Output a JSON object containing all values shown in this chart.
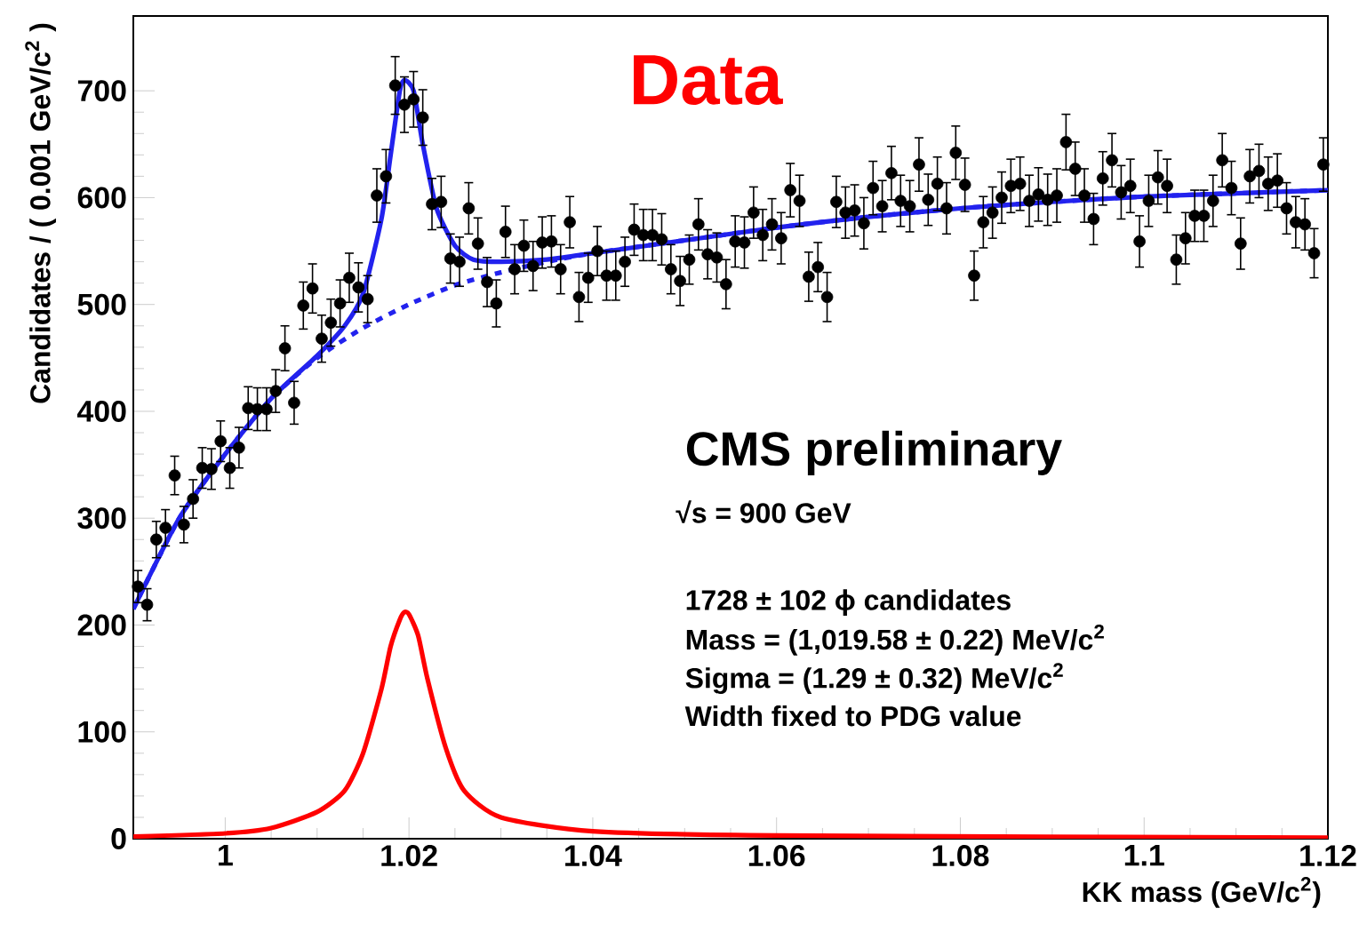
{
  "chart_data": {
    "type": "scatter",
    "xlabel": "KK mass (GeV/c$^{2}$)",
    "ylabel": "Candidates / ( 0.001 GeV/c$^{2}$ )",
    "annotations": [
      "Data",
      "CMS preliminary",
      "√s = 900 GeV",
      "1728 ± 102  ϕ candidates",
      "Mass = (1,019.58 ± 0.22) MeV/c$^{2}$",
      "Sigma = (1.29 ± 0.32) MeV/c$^{2}$",
      "Width fixed to PDG value"
    ],
    "xlim": [
      0.99,
      1.12
    ],
    "ylim": [
      0,
      770
    ],
    "xticks": [
      1,
      1.02,
      1.04,
      1.06,
      1.08,
      1.1,
      1.12
    ],
    "yticks": [
      0,
      100,
      200,
      300,
      400,
      500,
      600,
      700
    ],
    "series": [
      {
        "type": "line",
        "color": "#2222ee",
        "line_style": "dotted",
        "marker": "none",
        "x": [
          0.99,
          0.995,
          1.0,
          1.005,
          1.01,
          1.015,
          1.02,
          1.025,
          1.03,
          1.035,
          1.04,
          1.05,
          1.06,
          1.07,
          1.08,
          1.09,
          1.1,
          1.11,
          1.12
        ],
        "values": [
          215,
          300,
          360,
          412,
          450,
          478,
          500,
          518,
          530,
          540,
          548,
          560,
          572,
          582,
          590,
          596,
          601,
          604,
          607
        ]
      },
      {
        "type": "line",
        "color": "#2222ee",
        "line_style": "solid",
        "marker": "none",
        "x": [
          0.99,
          0.995,
          1.0,
          1.005,
          1.01,
          1.013,
          1.015,
          1.017,
          1.018,
          1.019,
          1.0195,
          1.0205,
          1.0215,
          1.023,
          1.025,
          1.027,
          1.03,
          1.035,
          1.04,
          1.05,
          1.06,
          1.07,
          1.08,
          1.09,
          1.1,
          1.11,
          1.12
        ],
        "values": [
          215,
          300,
          360,
          412,
          452,
          480,
          510,
          580,
          640,
          700,
          710,
          700,
          650,
          590,
          555,
          542,
          540,
          542,
          548,
          560,
          572,
          582,
          590,
          596,
          601,
          604,
          607
        ]
      },
      {
        "type": "line",
        "color": "#ff0000",
        "line_style": "solid",
        "marker": "none",
        "x": [
          0.99,
          1.0,
          1.005,
          1.01,
          1.013,
          1.015,
          1.017,
          1.018,
          1.019,
          1.0195,
          1.02,
          1.021,
          1.022,
          1.024,
          1.026,
          1.03,
          1.04,
          1.06,
          1.12
        ],
        "values": [
          2,
          5,
          10,
          25,
          45,
          80,
          140,
          180,
          205,
          212,
          210,
          190,
          150,
          85,
          45,
          20,
          7,
          3,
          1
        ]
      },
      {
        "color": "#000000",
        "marker": "circle",
        "x": [
          0.9905,
          0.9915,
          0.9925,
          0.9935,
          0.9945,
          0.9955,
          0.9965,
          0.9975,
          0.9985,
          0.9995,
          1.0005,
          1.0015,
          1.0025,
          1.0035,
          1.0045,
          1.0055,
          1.0065,
          1.0075,
          1.0085,
          1.0095,
          1.0105,
          1.0115,
          1.0125,
          1.0135,
          1.0145,
          1.0155,
          1.0165,
          1.0175,
          1.0185,
          1.0195,
          1.0205,
          1.0215,
          1.0225,
          1.0235,
          1.0245,
          1.0255,
          1.0265,
          1.0275,
          1.0285,
          1.0295,
          1.0305,
          1.0315,
          1.0325,
          1.0335,
          1.0345,
          1.0355,
          1.0365,
          1.0375,
          1.0385,
          1.0395,
          1.0405,
          1.0415,
          1.0425,
          1.0435,
          1.0445,
          1.0455,
          1.0465,
          1.0475,
          1.0485,
          1.0495,
          1.0505,
          1.0515,
          1.0525,
          1.0535,
          1.0545,
          1.0555,
          1.0565,
          1.0575,
          1.0585,
          1.0595,
          1.0605,
          1.0615,
          1.0625,
          1.0635,
          1.0645,
          1.0655,
          1.0665,
          1.0675,
          1.0685,
          1.0695,
          1.0705,
          1.0715,
          1.0725,
          1.0735,
          1.0745,
          1.0755,
          1.0765,
          1.0775,
          1.0785,
          1.0795,
          1.0805,
          1.0815,
          1.0825,
          1.0835,
          1.0845,
          1.0855,
          1.0865,
          1.0875,
          1.0885,
          1.0895,
          1.0905,
          1.0915,
          1.0925,
          1.0935,
          1.0945,
          1.0955,
          1.0965,
          1.0975,
          1.0985,
          1.0995,
          1.1005,
          1.1015,
          1.1025,
          1.1035,
          1.1045,
          1.1055,
          1.1065,
          1.1075,
          1.1085,
          1.1095,
          1.1105,
          1.1115,
          1.1125,
          1.1135,
          1.1145,
          1.1155,
          1.1165,
          1.1175,
          1.1185,
          1.1195
        ],
        "values": [
          236,
          219,
          280,
          291,
          340,
          294,
          318,
          347,
          346,
          372,
          347,
          366,
          403,
          402,
          402,
          419,
          459,
          408,
          499,
          515,
          468,
          483,
          501,
          525,
          516,
          505,
          602,
          620,
          705,
          687,
          692,
          675,
          594,
          596,
          543,
          540,
          590,
          557,
          521,
          501,
          568,
          533,
          555,
          536,
          558,
          559,
          533,
          577,
          507,
          525,
          550,
          527,
          527,
          540,
          570,
          565,
          565,
          561,
          533,
          522,
          542,
          575,
          547,
          544,
          519,
          559,
          558,
          586,
          565,
          575,
          562,
          607,
          597,
          526,
          535,
          507,
          596,
          586,
          588,
          576,
          609,
          592,
          623,
          597,
          592,
          631,
          598,
          613,
          590,
          642,
          612,
          527,
          577,
          586,
          600,
          611,
          613,
          597,
          603,
          598,
          602,
          652,
          627,
          602,
          580,
          618,
          635,
          605,
          611,
          559,
          597,
          619,
          611,
          542,
          562,
          583,
          583,
          597,
          635,
          609,
          557,
          620,
          625,
          613,
          616,
          590,
          577,
          575,
          548,
          631
        ],
        "errors": [
          15,
          15,
          17,
          17,
          18,
          17,
          18,
          19,
          19,
          19,
          19,
          19,
          20,
          20,
          20,
          20,
          21,
          20,
          22,
          23,
          22,
          22,
          22,
          23,
          23,
          22,
          25,
          25,
          27,
          26,
          26,
          26,
          24,
          24,
          23,
          23,
          24,
          24,
          23,
          22,
          24,
          23,
          24,
          23,
          24,
          24,
          23,
          24,
          23,
          23,
          23,
          23,
          23,
          23,
          24,
          24,
          24,
          24,
          23,
          23,
          23,
          24,
          23,
          23,
          23,
          24,
          24,
          24,
          24,
          24,
          24,
          25,
          24,
          23,
          23,
          23,
          24,
          24,
          24,
          24,
          25,
          24,
          25,
          24,
          24,
          25,
          24,
          25,
          24,
          25,
          25,
          23,
          24,
          24,
          24,
          25,
          25,
          24,
          25,
          24,
          25,
          26,
          25,
          25,
          24,
          25,
          25,
          25,
          25,
          24,
          24,
          25,
          25,
          23,
          24,
          24,
          24,
          24,
          25,
          25,
          24,
          25,
          25,
          25,
          25,
          24,
          24,
          24,
          23,
          25
        ]
      }
    ]
  }
}
